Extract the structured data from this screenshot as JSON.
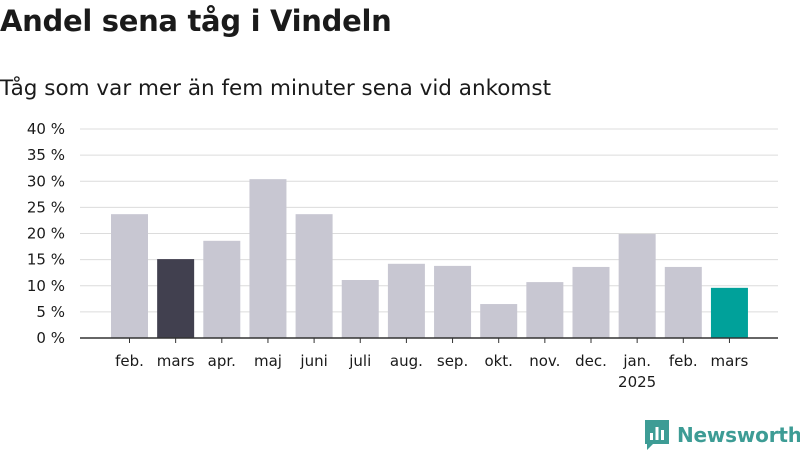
{
  "title": "Andel sena tåg i Vindeln",
  "subtitle": "Tåg som var mer än fem minuter sena vid ankomst",
  "brand": {
    "name": "Newsworthy",
    "icon": "newsworthy-logo-icon",
    "color": "#3d9c95"
  },
  "chart_data": {
    "type": "bar",
    "categories": [
      "feb.",
      "mars",
      "apr.",
      "maj",
      "juni",
      "juli",
      "aug.",
      "sep.",
      "okt.",
      "nov.",
      "dec.",
      "jan.",
      "feb.",
      "mars"
    ],
    "category_sublabels": [
      "",
      "",
      "",
      "",
      "",
      "",
      "",
      "",
      "",
      "",
      "",
      "2025",
      "",
      ""
    ],
    "values": [
      23.7,
      15.1,
      18.6,
      30.4,
      23.7,
      11.1,
      14.2,
      13.8,
      6.5,
      10.7,
      13.6,
      19.9,
      13.6,
      9.6
    ],
    "colors": [
      "#c8c7d2",
      "#41404f",
      "#c8c7d2",
      "#c8c7d2",
      "#c8c7d2",
      "#c8c7d2",
      "#c8c7d2",
      "#c8c7d2",
      "#c8c7d2",
      "#c8c7d2",
      "#c8c7d2",
      "#c8c7d2",
      "#c8c7d2",
      "#00a19a"
    ],
    "ylim": [
      0,
      40
    ],
    "yticks": [
      0,
      5,
      10,
      15,
      20,
      25,
      30,
      35,
      40
    ],
    "ytick_suffix": " %",
    "grid": true,
    "xlabel": "",
    "ylabel": ""
  }
}
